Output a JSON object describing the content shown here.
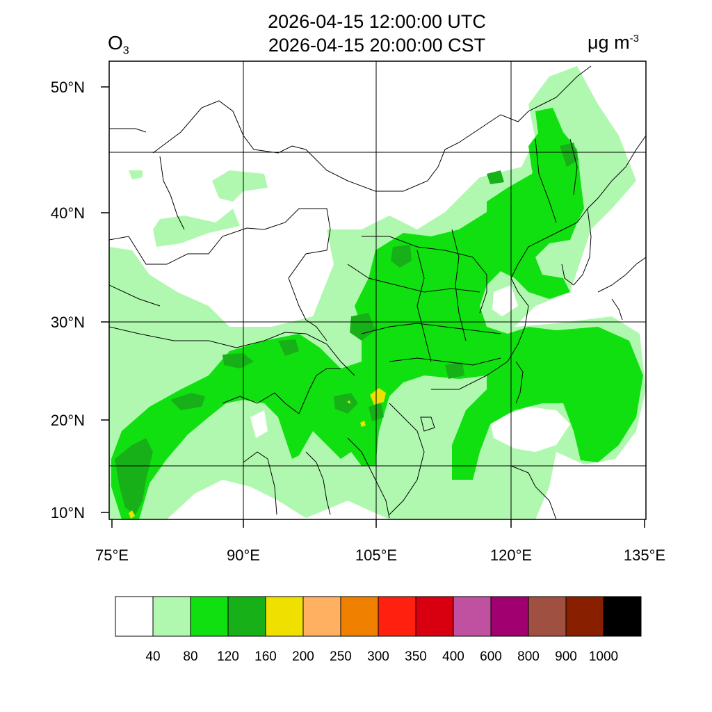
{
  "title": {
    "line1": "2026-04-15 12:00:00 UTC",
    "line2": "2026-04-15 20:00:00 CST"
  },
  "variable": {
    "name": "O",
    "subscript": "3"
  },
  "units": {
    "base": "μg m",
    "exponent": "-3"
  },
  "axes": {
    "lon_ticks": [
      "75°E",
      "90°E",
      "105°E",
      "120°E",
      "135°E"
    ],
    "lat_ticks": [
      "50°N",
      "40°N",
      "30°N",
      "20°N",
      "10°N"
    ]
  },
  "colorbar": {
    "labels": [
      "40",
      "80",
      "120",
      "160",
      "200",
      "250",
      "300",
      "350",
      "400",
      "600",
      "800",
      "900",
      "1000"
    ],
    "colors": [
      "#ffffff",
      "#b0f8b0",
      "#10e010",
      "#18b018",
      "#f0e000",
      "#ffb060",
      "#f08000",
      "#ff2010",
      "#d80010",
      "#c050a0",
      "#a00070",
      "#a05040",
      "#882000",
      "#000000"
    ]
  },
  "map_fields": {
    "base_color": "#b0f8b0",
    "mid_color": "#10e010",
    "high_color": "#18b018",
    "peak_color": "#f0e000"
  }
}
